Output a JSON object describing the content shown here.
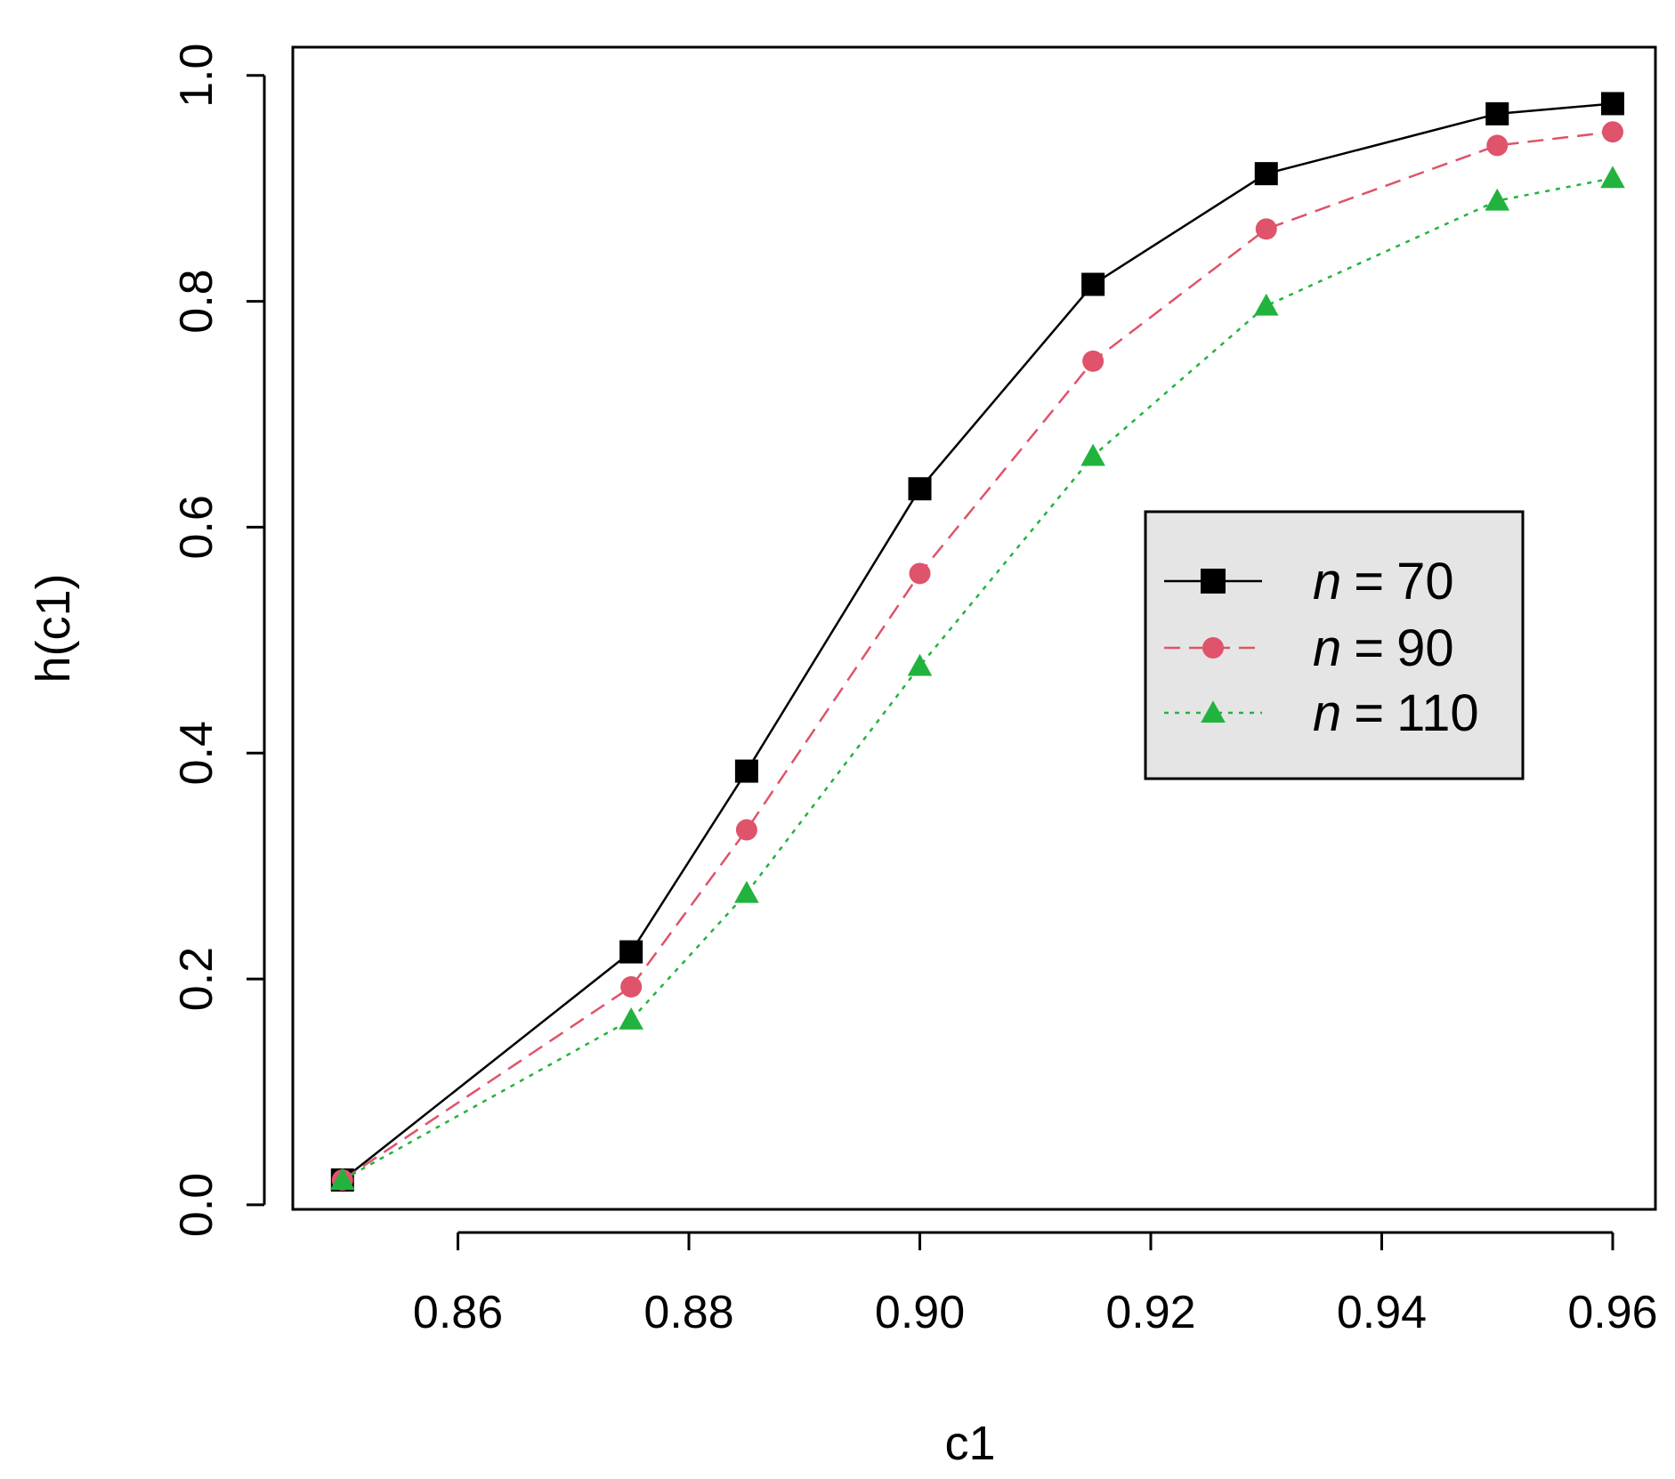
{
  "chart_data": {
    "type": "line",
    "title": "",
    "xlabel": "c1",
    "ylabel": "h(c1)",
    "x": [
      0.85,
      0.875,
      0.885,
      0.9,
      0.915,
      0.93,
      0.95,
      0.96
    ],
    "xlim": [
      0.8457,
      0.9637
    ],
    "ylim": [
      -0.004,
      1.025
    ],
    "xticks": [
      "0.86",
      "0.88",
      "0.90",
      "0.92",
      "0.94",
      "0.96"
    ],
    "xtick_values": [
      0.86,
      0.88,
      0.9,
      0.92,
      0.94,
      0.96
    ],
    "yticks": [
      "0.0",
      "0.2",
      "0.4",
      "0.6",
      "0.8",
      "1.0"
    ],
    "ytick_values": [
      0.0,
      0.2,
      0.4,
      0.6,
      0.8,
      1.0
    ],
    "grid": false,
    "legend_position": "right",
    "legend_var": "n",
    "legend_eq": "=",
    "series": [
      {
        "name": "70",
        "color": "#000000",
        "marker": "square",
        "line": "solid",
        "values": [
          0.022,
          0.224,
          0.384,
          0.634,
          0.815,
          0.913,
          0.966,
          0.975
        ]
      },
      {
        "name": "90",
        "color": "#DF536B",
        "marker": "circle",
        "line": "dashed",
        "values": [
          0.022,
          0.193,
          0.332,
          0.559,
          0.747,
          0.864,
          0.938,
          0.95
        ]
      },
      {
        "name": "110",
        "color": "#22B33F",
        "marker": "triangle",
        "line": "dotted",
        "values": [
          0.022,
          0.164,
          0.276,
          0.477,
          0.663,
          0.796,
          0.889,
          0.909
        ]
      }
    ]
  }
}
